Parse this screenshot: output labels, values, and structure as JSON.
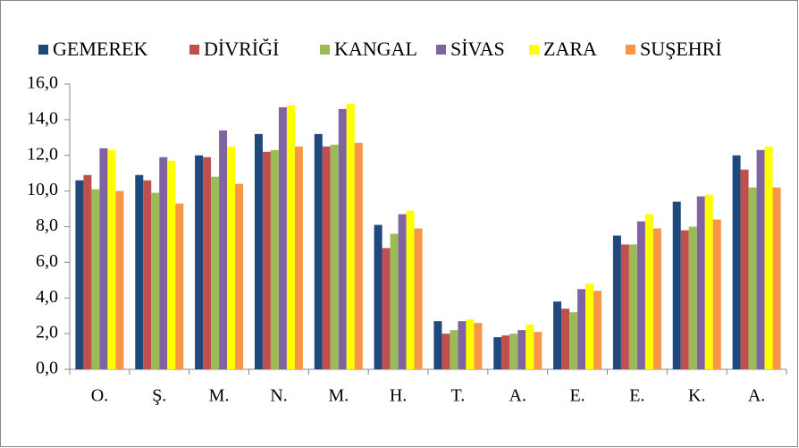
{
  "chart_data": {
    "type": "bar",
    "grid": false,
    "legend": "top",
    "categories": [
      "O.",
      "Ş.",
      "M.",
      "N.",
      "M.",
      "H.",
      "T.",
      "A.",
      "E.",
      "E.",
      "K.",
      "A."
    ],
    "series": [
      {
        "name": "GEMEREK",
        "color": "#1F497D",
        "values": [
          10.6,
          10.9,
          12.0,
          13.2,
          13.2,
          8.1,
          2.7,
          1.8,
          3.8,
          7.5,
          9.4,
          12.0
        ]
      },
      {
        "name": "DİVRİĞİ",
        "color": "#C0504D",
        "values": [
          10.9,
          10.6,
          11.9,
          12.2,
          12.5,
          6.8,
          2.0,
          1.9,
          3.4,
          7.0,
          7.8,
          11.2
        ]
      },
      {
        "name": "KANGAL",
        "color": "#9BBB59",
        "values": [
          10.1,
          9.9,
          10.8,
          12.3,
          12.6,
          7.6,
          2.2,
          2.0,
          3.2,
          7.0,
          8.0,
          10.2
        ]
      },
      {
        "name": "SİVAS",
        "color": "#8064A2",
        "values": [
          12.4,
          11.9,
          13.4,
          14.7,
          14.6,
          8.7,
          2.7,
          2.2,
          4.5,
          8.3,
          9.7,
          12.3
        ]
      },
      {
        "name": "ZARA",
        "color": "#FFFF00",
        "values": [
          12.3,
          11.7,
          12.5,
          14.8,
          14.9,
          8.9,
          2.8,
          2.5,
          4.8,
          8.7,
          9.8,
          12.5
        ]
      },
      {
        "name": "SUŞEHRİ",
        "color": "#F79646",
        "values": [
          10.0,
          9.3,
          10.4,
          12.5,
          12.7,
          7.9,
          2.6,
          2.1,
          4.4,
          7.9,
          8.4,
          10.2
        ]
      }
    ],
    "ylim": [
      0,
      16
    ],
    "yticks": [
      {
        "value": 0,
        "label": "0,0"
      },
      {
        "value": 2,
        "label": "2,0"
      },
      {
        "value": 4,
        "label": "4,0"
      },
      {
        "value": 6,
        "label": "6,0"
      },
      {
        "value": 8,
        "label": "8,0"
      },
      {
        "value": 10,
        "label": "10,0"
      },
      {
        "value": 12,
        "label": "12,0"
      },
      {
        "value": 14,
        "label": "14,0"
      },
      {
        "value": 16,
        "label": "16,0"
      }
    ]
  }
}
